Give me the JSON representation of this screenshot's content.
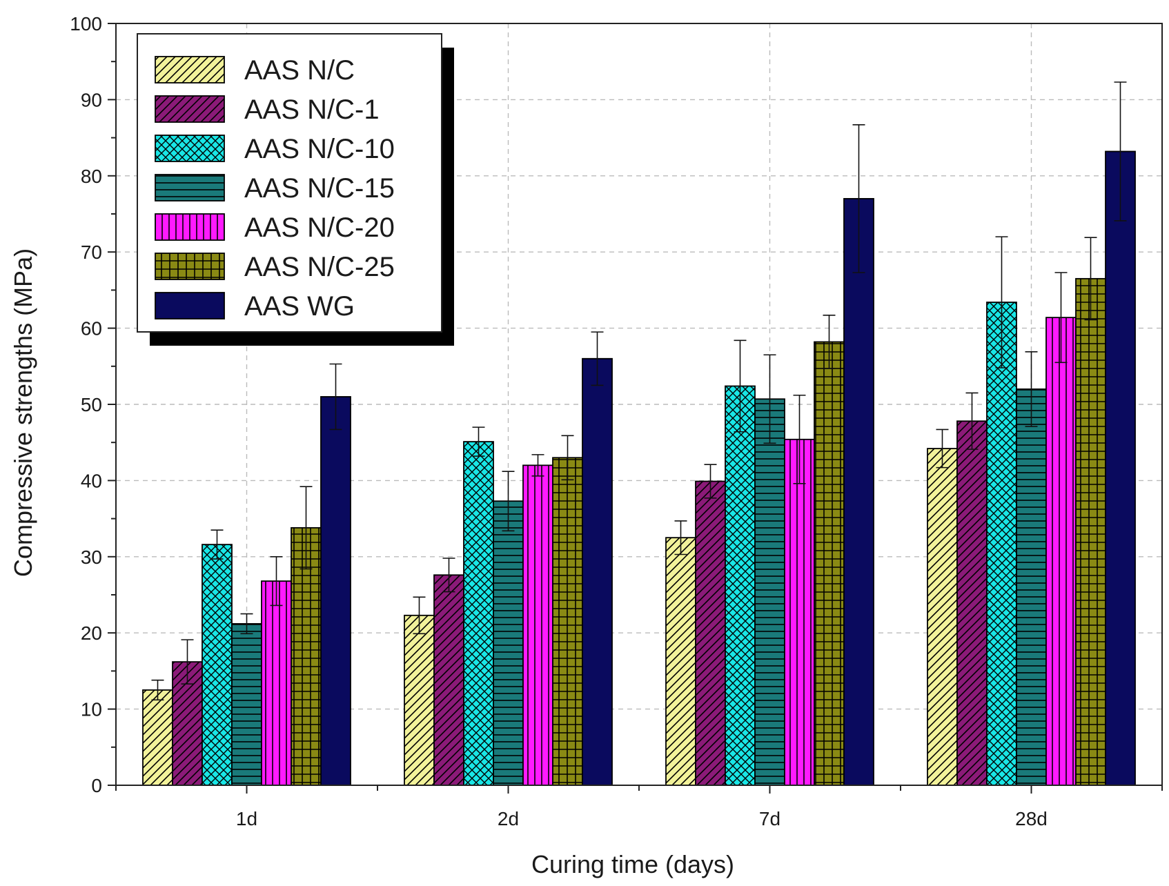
{
  "chart_data": {
    "type": "bar",
    "title": "",
    "xlabel": "Curing time (days)",
    "ylabel": "Compressive strengths (MPa)",
    "categories": [
      "1d",
      "2d",
      "7d",
      "28d"
    ],
    "ylim": [
      0,
      100
    ],
    "yticks": [
      0,
      10,
      20,
      30,
      40,
      50,
      60,
      70,
      80,
      90,
      100
    ],
    "grid": true,
    "legend_position": "top-left",
    "series": [
      {
        "name": "AAS N/C",
        "color": "#f2f29a",
        "pattern": "diagonal",
        "values": [
          12.5,
          22.3,
          32.5,
          44.2
        ],
        "errors": [
          1.3,
          2.4,
          2.2,
          2.5
        ]
      },
      {
        "name": "AAS N/C-1",
        "color": "#8b1a78",
        "pattern": "diagonal",
        "values": [
          16.2,
          27.6,
          39.9,
          47.8
        ],
        "errors": [
          2.9,
          2.2,
          2.2,
          3.7
        ]
      },
      {
        "name": "AAS N/C-10",
        "color": "#19e6e6",
        "pattern": "crosshatch",
        "values": [
          31.6,
          45.1,
          52.4,
          63.4
        ],
        "errors": [
          1.9,
          1.9,
          6.0,
          8.6
        ]
      },
      {
        "name": "AAS N/C-15",
        "color": "#1a7a7a",
        "pattern": "horizontal",
        "values": [
          21.2,
          37.3,
          50.7,
          52.0
        ],
        "errors": [
          1.3,
          3.9,
          5.8,
          4.9
        ]
      },
      {
        "name": "AAS N/C-20",
        "color": "#ff1aff",
        "pattern": "vertical",
        "values": [
          26.8,
          42.0,
          45.4,
          61.4
        ],
        "errors": [
          3.2,
          1.4,
          5.8,
          5.9
        ]
      },
      {
        "name": "AAS N/C-25",
        "color": "#8a8a14",
        "pattern": "grid",
        "values": [
          33.8,
          43.0,
          58.2,
          66.5
        ],
        "errors": [
          5.4,
          2.9,
          3.5,
          5.4
        ]
      },
      {
        "name": "AAS WG",
        "color": "#0a0a5e",
        "pattern": "solid",
        "values": [
          51.0,
          56.0,
          77.0,
          83.2
        ],
        "errors": [
          4.3,
          3.5,
          9.7,
          9.1
        ]
      }
    ]
  }
}
